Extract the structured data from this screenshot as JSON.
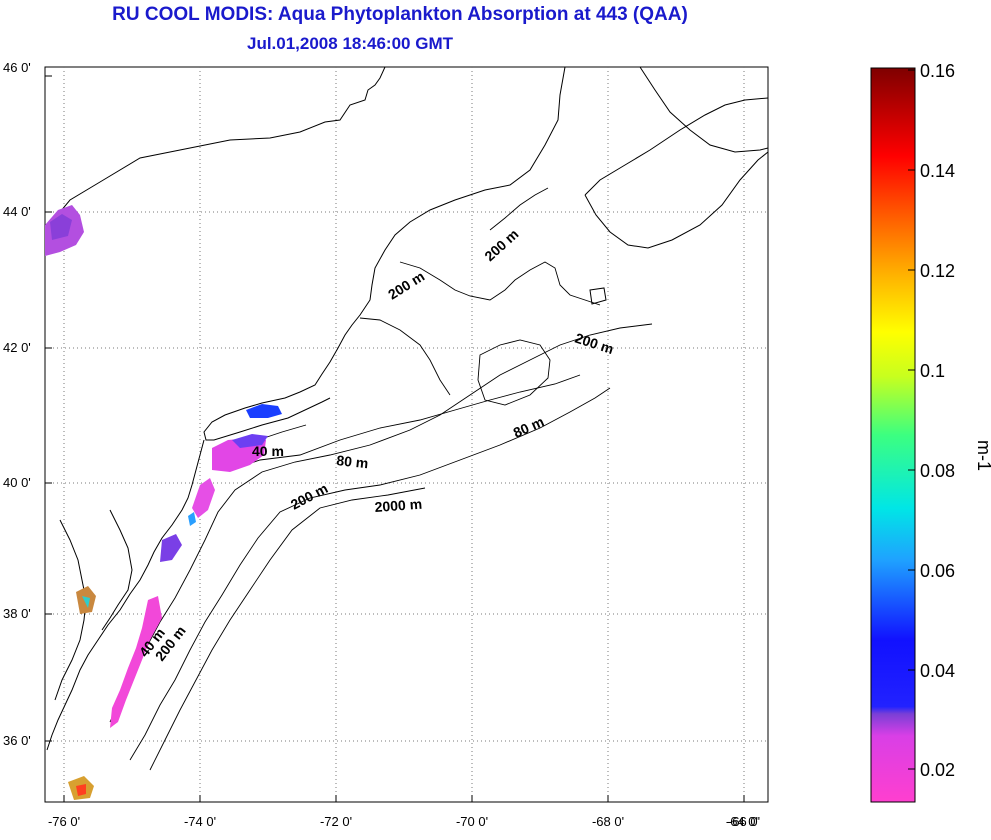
{
  "title": "RU COOL MODIS: Aqua Phytoplankton Absorption at 443 (QAA)",
  "subtitle": "Jul.01,2008 18:46:00 GMT",
  "map": {
    "lat_labels": [
      "46 0'",
      "44 0'",
      "42 0'",
      "40 0'",
      "38 0'",
      "36 0'"
    ],
    "lon_labels": [
      "-76 0'",
      "-74 0'",
      "-72 0'",
      "-70 0'",
      "-68 0'",
      "-66 0'",
      "-64 0'"
    ],
    "contour_labels": [
      "200 m",
      "200 m",
      "200 m",
      "80 m",
      "40 m",
      "80 m",
      "200 m",
      "2000 m",
      "40 m",
      "200 m"
    ]
  },
  "colorbar": {
    "unit": "m-1",
    "tick_labels": [
      "0.16",
      "0.14",
      "0.12",
      "0.1",
      "0.08",
      "0.06",
      "0.04",
      "0.02"
    ],
    "colors": [
      "#7f0000",
      "#ff0000",
      "#ff8000",
      "#ffff00",
      "#00ff80",
      "#00ffff",
      "#0080ff",
      "#0000ff",
      "#8000ff",
      "#ff00ff"
    ]
  }
}
